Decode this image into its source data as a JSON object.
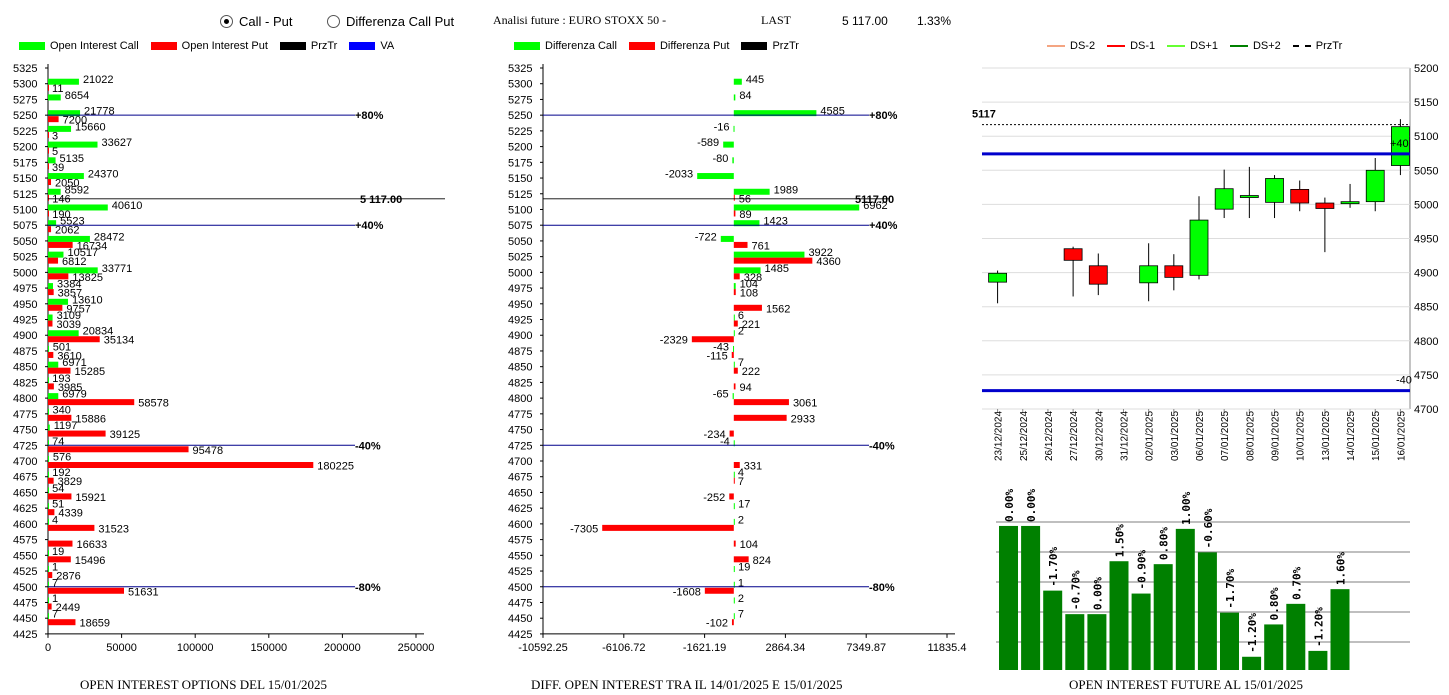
{
  "header": {
    "radio_call_put": "Call - Put",
    "radio_diff": "Differenza Call Put",
    "radio_selected": "call_put",
    "analysis_label": "Analisi future : EURO STOXX 50 -",
    "last_label": "LAST",
    "last_value": "5 117.00",
    "last_change": "1.33%"
  },
  "legend_left": [
    {
      "label": "Open Interest Call",
      "color": "#00ff00"
    },
    {
      "label": "Open Interest Put",
      "color": "#ff0000"
    },
    {
      "label": "PrzTr",
      "color": "#000000"
    },
    {
      "label": "VA",
      "color": "#0000ff"
    }
  ],
  "legend_mid": [
    {
      "label": "Differenza Call",
      "color": "#00ff00"
    },
    {
      "label": "Differenza Put",
      "color": "#ff0000"
    },
    {
      "label": "PrzTr",
      "color": "#000000"
    }
  ],
  "legend_right": [
    {
      "label": "DS-2",
      "color": "#f4a582"
    },
    {
      "label": "DS-1",
      "color": "#ff0000"
    },
    {
      "label": "DS+1",
      "color": "#66ff33"
    },
    {
      "label": "DS+2",
      "color": "#008000"
    },
    {
      "label": "PrzTr",
      "color": "#000000"
    }
  ],
  "footers": {
    "left": "OPEN INTEREST OPTIONS DEL 15/01/2025",
    "mid": "DIFF. OPEN INTEREST TRA IL 14/01/2025 E 15/01/2025",
    "right": "OPEN INTEREST FUTURE AL 15/01/2025"
  },
  "chart_data": [
    {
      "type": "bar",
      "orientation": "horizontal",
      "strikes": [
        5325,
        5300,
        5275,
        5250,
        5225,
        5200,
        5175,
        5150,
        5125,
        5100,
        5075,
        5050,
        5025,
        5000,
        4975,
        4950,
        4925,
        4900,
        4875,
        4850,
        4825,
        4800,
        4775,
        4750,
        4725,
        4700,
        4675,
        4650,
        4625,
        4600,
        4575,
        4550,
        4525,
        4500,
        4475,
        4450,
        4425
      ],
      "series": [
        {
          "name": "Open Interest Call",
          "color": "#00ff00",
          "values": [
            null,
            21022,
            8654,
            21778,
            15660,
            33627,
            5135,
            24370,
            8592,
            40610,
            5523,
            28472,
            10517,
            33771,
            3384,
            13610,
            3109,
            20834,
            501,
            6971,
            193,
            6979,
            340,
            1197,
            74,
            576,
            192,
            54,
            51,
            4,
            null,
            19,
            1,
            7,
            1,
            7,
            null
          ]
        },
        {
          "name": "Open Interest Put",
          "color": "#ff0000",
          "values": [
            null,
            11,
            null,
            7200,
            3,
            5,
            39,
            2050,
            146,
            190,
            2062,
            16734,
            6812,
            13825,
            3857,
            9757,
            3039,
            35134,
            3610,
            15285,
            3985,
            58578,
            15886,
            39125,
            95478,
            180225,
            3829,
            15921,
            4339,
            31523,
            16633,
            15496,
            2876,
            51631,
            2449,
            18659,
            null
          ]
        }
      ],
      "xlim": [
        0,
        250000
      ],
      "xticks": [
        "0",
        "50000",
        "100000",
        "150000",
        "200000",
        "250000"
      ],
      "price_line": {
        "value": 5117,
        "label": "5 117.00"
      },
      "va_lines": [
        {
          "strike": 5250,
          "label": "+80%"
        },
        {
          "strike": 5075,
          "label": "+40%"
        },
        {
          "strike": 4725,
          "label": "-40%"
        },
        {
          "strike": 4500,
          "label": "-80%"
        }
      ]
    },
    {
      "type": "bar",
      "orientation": "horizontal",
      "strikes": [
        5325,
        5300,
        5275,
        5250,
        5225,
        5200,
        5175,
        5150,
        5125,
        5100,
        5075,
        5050,
        5025,
        5000,
        4975,
        4950,
        4925,
        4900,
        4875,
        4850,
        4825,
        4800,
        4775,
        4750,
        4725,
        4700,
        4675,
        4650,
        4625,
        4600,
        4575,
        4550,
        4525,
        4500,
        4475,
        4450,
        4425
      ],
      "series": [
        {
          "name": "Differenza Call",
          "color": "#00ff00",
          "values": [
            null,
            445,
            84,
            4585,
            -16,
            -589,
            -80,
            -2033,
            1989,
            6962,
            1423,
            -722,
            3922,
            1485,
            104,
            null,
            6,
            2,
            -43,
            7,
            null,
            -65,
            null,
            null,
            -4,
            null,
            4,
            null,
            17,
            2,
            null,
            null,
            19,
            1,
            2,
            7,
            null
          ]
        },
        {
          "name": "Differenza Put",
          "color": "#ff0000",
          "values": [
            null,
            null,
            null,
            null,
            null,
            null,
            null,
            null,
            56,
            89,
            null,
            761,
            4360,
            328,
            108,
            1562,
            221,
            -2329,
            -115,
            222,
            94,
            3061,
            2933,
            -234,
            null,
            331,
            7,
            -252,
            null,
            -7305,
            104,
            824,
            null,
            -1608,
            null,
            -102,
            null
          ]
        }
      ],
      "xlim": [
        -10592.25,
        11835.4
      ],
      "xticks": [
        "-10592.25",
        "-6106.72",
        "-1621.19",
        "2864.34",
        "7349.87",
        "11835.4"
      ],
      "price_line": {
        "value": 5117,
        "label": "5117.00"
      },
      "va_lines": [
        {
          "strike": 5250,
          "label": "+80%"
        },
        {
          "strike": 5075,
          "label": "+40%"
        },
        {
          "strike": 4725,
          "label": "-40%"
        },
        {
          "strike": 4500,
          "label": "-80%"
        }
      ]
    },
    {
      "type": "candlestick",
      "dates": [
        "23/12/2024",
        "25/12/2024",
        "26/12/2024",
        "27/12/2024",
        "30/12/2024",
        "31/12/2024",
        "02/01/2025",
        "03/01/2025",
        "06/01/2025",
        "07/01/2025",
        "08/01/2025",
        "09/01/2025",
        "10/01/2025",
        "13/01/2025",
        "14/01/2025",
        "15/01/2025",
        "16/01/2025"
      ],
      "candles": [
        {
          "date": "23/12/2024",
          "open": 4886,
          "high": 4903,
          "low": 4855,
          "close": 4899
        },
        {
          "date": "25/12/2024",
          "open": null,
          "high": null,
          "low": null,
          "close": null
        },
        {
          "date": "26/12/2024",
          "open": null,
          "high": null,
          "low": null,
          "close": null
        },
        {
          "date": "27/12/2024",
          "open": 4935,
          "high": 4938,
          "low": 4865,
          "close": 4918
        },
        {
          "date": "30/12/2024",
          "open": 4910,
          "high": 4928,
          "low": 4867,
          "close": 4883
        },
        {
          "date": "31/12/2024",
          "open": null,
          "high": null,
          "low": null,
          "close": null
        },
        {
          "date": "02/01/2025",
          "open": 4885,
          "high": 4943,
          "low": 4858,
          "close": 4910
        },
        {
          "date": "03/01/2025",
          "open": 4910,
          "high": 4927,
          "low": 4874,
          "close": 4893
        },
        {
          "date": "06/01/2025",
          "open": 4896,
          "high": 5012,
          "low": 4890,
          "close": 4977
        },
        {
          "date": "07/01/2025",
          "open": 4993,
          "high": 5051,
          "low": 4980,
          "close": 5023
        },
        {
          "date": "08/01/2025",
          "open": 5012,
          "high": 5055,
          "low": 4980,
          "close": 5013
        },
        {
          "date": "09/01/2025",
          "open": 5003,
          "high": 5043,
          "low": 4980,
          "close": 5038
        },
        {
          "date": "10/01/2025",
          "open": 5022,
          "high": 5035,
          "low": 4990,
          "close": 5002
        },
        {
          "date": "13/01/2025",
          "open": 5002,
          "high": 5010,
          "low": 4930,
          "close": 4994
        },
        {
          "date": "14/01/2025",
          "open": 5002,
          "high": 5030,
          "low": 4995,
          "close": 5004
        },
        {
          "date": "15/01/2025",
          "open": 5004,
          "high": 5068,
          "low": 4990,
          "close": 5050
        },
        {
          "date": "16/01/2025",
          "open": 5057,
          "high": 5125,
          "low": 5043,
          "close": 5114
        }
      ],
      "ylim": [
        4700,
        5200
      ],
      "yticks": [
        4700,
        4750,
        4800,
        4850,
        4900,
        4950,
        5000,
        5050,
        5100,
        5150,
        5200
      ],
      "last_price": {
        "value": 5117,
        "label": "5117"
      },
      "upper_line": {
        "value": 5074,
        "label": "+40"
      },
      "lower_line": {
        "value": 4727,
        "label": "-40"
      }
    },
    {
      "type": "bar",
      "series_color": "#008000",
      "values": [
        0.0,
        0.0,
        -1.7,
        -0.7,
        0.0,
        1.5,
        -0.9,
        0.8,
        1.0,
        -0.6,
        -1.7,
        -1.2,
        0.8,
        0.7,
        -1.2,
        1.6
      ],
      "labels": [
        "0.00%",
        "0.00%",
        "-1.70%",
        "-0.70%",
        "0.00%",
        "1.50%",
        "-0.90%",
        "0.80%",
        "1.00%",
        "-0.60%",
        "-1.70%",
        "-1.20%",
        "0.80%",
        "0.70%",
        "-1.20%",
        "1.60%"
      ],
      "bar_heights_relative": [
        0.98,
        0.98,
        0.54,
        0.38,
        0.38,
        0.74,
        0.52,
        0.72,
        0.96,
        0.8,
        0.39,
        0.09,
        0.31,
        0.45,
        0.13,
        0.55
      ]
    }
  ]
}
